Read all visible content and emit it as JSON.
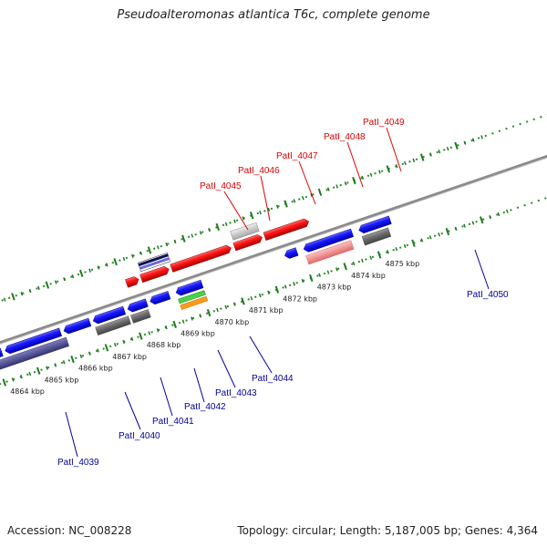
{
  "title": "Pseudoalteromonas atlantica T6c, complete genome",
  "accession": "Accession: NC_008228",
  "summary": "Topology: circular; Length: 5,187,005 bp; Genes: 4,364",
  "colors": {
    "forward_label": "#dd0000",
    "reverse_label": "#000099",
    "backbone": "#888888",
    "dots": "#2e8b2e"
  },
  "ticks": [
    "4864 kbp",
    "4865 kbp",
    "4866 kbp",
    "4867 kbp",
    "4868 kbp",
    "4869 kbp",
    "4870 kbp",
    "4871 kbp",
    "4872 kbp",
    "4873 kbp",
    "4874 kbp",
    "4875 kbp"
  ],
  "forward_labels": [
    "PatI_4045",
    "PatI_4046",
    "PatI_4047",
    "PatI_4048",
    "PatI_4049"
  ],
  "reverse_labels": [
    "PatI_4039",
    "PatI_4040",
    "PatI_4041",
    "PatI_4042",
    "PatI_4043",
    "PatI_4044",
    "PatI_4050"
  ]
}
